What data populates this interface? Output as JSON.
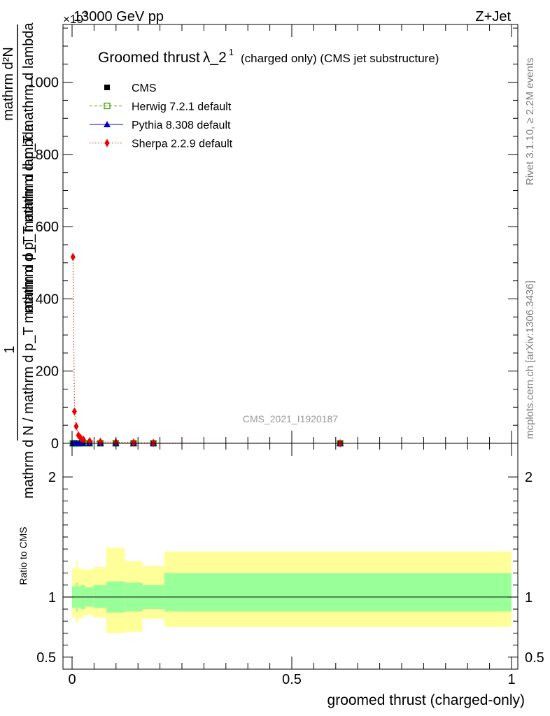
{
  "header": {
    "left": "13000 GeV pp",
    "right": "Z+Jet",
    "scale_prefix": "×10",
    "scale_exp": "3"
  },
  "side_text": {
    "rivet": "Rivet 3.1.10, ≥ 2.2M events",
    "mcplots": "mcplots.cern.ch [arXiv:1306.3436]"
  },
  "chart_data": [
    {
      "type": "line",
      "title": "Groomed thrust λ_2^1",
      "title_main": "Groomed thrust",
      "title_lambda": "λ_2",
      "title_sup": "1",
      "title_tail": "(charged only) (CMS jet substructure)",
      "watermark": "CMS_2021_I1920187",
      "ylabel_numerator": "1",
      "ylabel_top": "mathrm d²N",
      "ylabel_mid": "mathrm d p_T mathrm d p_T mathrm d lambda",
      "ylabel_bottom": "mathrm d N / mathrm d p_T mathrm d p_T mathrm d lambda",
      "xlim": [
        0,
        1
      ],
      "ylim": [
        0,
        1160
      ],
      "yticks": [
        0,
        200,
        400,
        600,
        800,
        1000
      ],
      "ytick_labels": [
        "0",
        "200",
        "400",
        "600",
        "800",
        "1000"
      ],
      "legend_position": "top-left",
      "series": [
        {
          "name": "CMS",
          "color": "#000000",
          "marker": "square-filled",
          "x": [
            0.002,
            0.0065,
            0.0105,
            0.0165,
            0.0245,
            0.0395,
            0.0645,
            0.0995,
            0.14,
            0.185,
            0.61
          ],
          "values": [
            0,
            0,
            0,
            0,
            0,
            0,
            0,
            0,
            0,
            0,
            0
          ]
        },
        {
          "name": "Herwig 7.2.1 default",
          "color": "#4a9a00",
          "marker": "square-open",
          "linestyle": "dashed",
          "x": [
            0.002,
            0.0065,
            0.0105,
            0.0165,
            0.0245,
            0.0395,
            0.0645,
            0.0995,
            0.14,
            0.185,
            0.61
          ],
          "values": [
            0,
            0,
            0,
            0,
            0,
            0,
            0,
            0,
            0,
            0,
            0
          ]
        },
        {
          "name": "Pythia 8.308 default",
          "color": "#0000cc",
          "marker": "triangle",
          "linestyle": "solid",
          "x": [
            0.002,
            0.0065,
            0.0105,
            0.0165,
            0.0245,
            0.0395,
            0.0645,
            0.0995,
            0.14,
            0.185,
            0.61
          ],
          "values": [
            0,
            0,
            0,
            0,
            0,
            0,
            0,
            0,
            0,
            0,
            0
          ]
        },
        {
          "name": "Sherpa 2.2.9 default",
          "color": "#ee0000",
          "marker": "diamond",
          "linestyle": "dotted",
          "x": [
            0.002,
            0.0055,
            0.0095,
            0.0145,
            0.02,
            0.026,
            0.04,
            0.0645,
            0.0995,
            0.14,
            0.185,
            0.61
          ],
          "values": [
            516,
            88,
            47,
            22,
            14,
            10,
            6,
            4,
            3,
            2,
            1,
            0
          ]
        }
      ]
    },
    {
      "type": "area",
      "title": "",
      "ylabel": "Ratio to CMS",
      "xlabel": "groomed thrust (charged-only)",
      "xlim": [
        0,
        1
      ],
      "ylim": [
        0.4,
        2.28
      ],
      "yticks": [
        0.5,
        1,
        2
      ],
      "ytick_labels": [
        "0.5",
        "1",
        "2"
      ],
      "xticks": [
        0,
        0.5,
        1
      ],
      "xtick_labels": [
        "0",
        "0.5",
        "1"
      ],
      "reference_line": 1,
      "bins": [
        0,
        0.004,
        0.009,
        0.013,
        0.02,
        0.03,
        0.049,
        0.078,
        0.12,
        0.16,
        0.21,
        1.0
      ],
      "inner_band": [
        [
          0.91,
          1.09
        ],
        [
          0.91,
          1.09
        ],
        [
          0.88,
          1.12
        ],
        [
          0.91,
          1.09
        ],
        [
          0.9,
          1.1
        ],
        [
          0.92,
          1.08
        ],
        [
          0.91,
          1.1
        ],
        [
          0.87,
          1.13
        ],
        [
          0.88,
          1.12
        ],
        [
          0.9,
          1.1
        ],
        [
          0.88,
          1.2
        ]
      ],
      "outer_band": [
        [
          0.83,
          1.24
        ],
        [
          0.83,
          1.24
        ],
        [
          0.78,
          1.3
        ],
        [
          0.82,
          1.24
        ],
        [
          0.83,
          1.23
        ],
        [
          0.85,
          1.23
        ],
        [
          0.83,
          1.25
        ],
        [
          0.7,
          1.41
        ],
        [
          0.71,
          1.3
        ],
        [
          0.82,
          1.26
        ],
        [
          0.75,
          1.38
        ]
      ],
      "inner_color": "#99ff99",
      "outer_color": "#ffff99"
    }
  ]
}
